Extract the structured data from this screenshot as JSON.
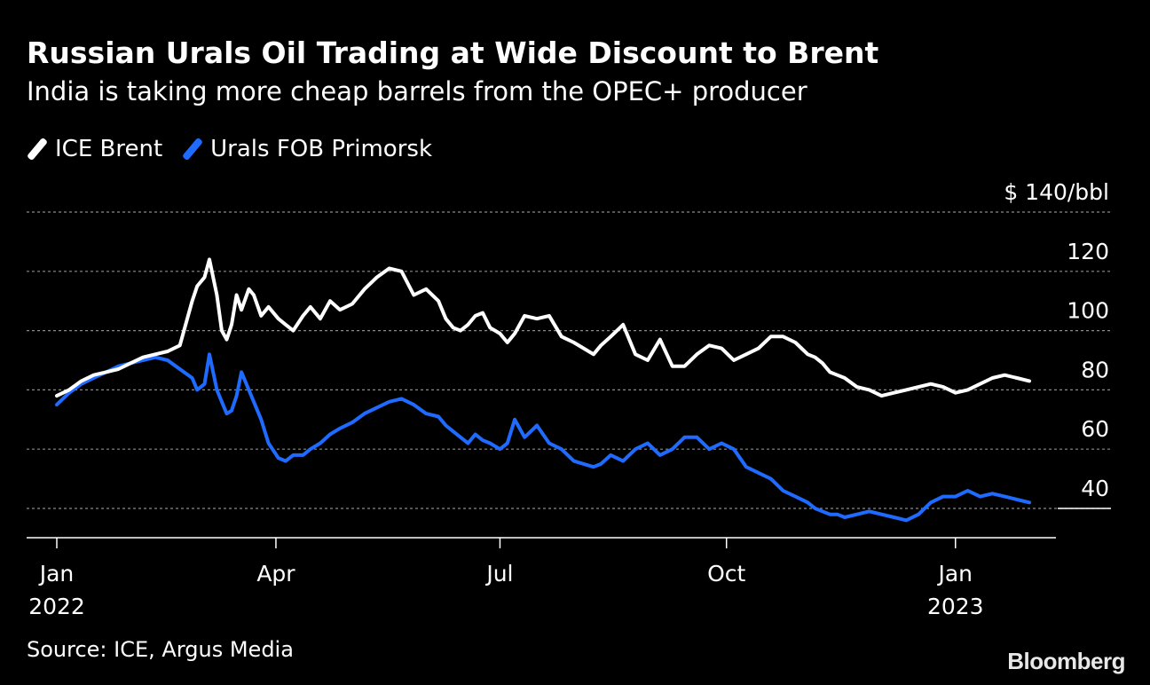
{
  "header": {
    "title": "Russian Urals Oil Trading at Wide Discount to Brent",
    "subtitle": "India is taking more cheap barrels from the OPEC+ producer"
  },
  "colors": {
    "background": "#000000",
    "brent": "#ffffff",
    "urals": "#1f6bff",
    "grid": "#8a8a8a"
  },
  "footer": {
    "source": "Source: ICE, Argus Media",
    "brand": "Bloomberg"
  },
  "chart_data": {
    "type": "line",
    "title": "Russian Urals Oil Trading at Wide Discount to Brent",
    "ylabel": "$ 140/bbl",
    "y_unit_label": "$ 140/bbl",
    "ylim": [
      30,
      140
    ],
    "y_ticks": [
      {
        "value": 140,
        "label": "$ 140/bbl"
      },
      {
        "value": 120,
        "label": "120"
      },
      {
        "value": 100,
        "label": "100"
      },
      {
        "value": 80,
        "label": "80"
      },
      {
        "value": 60,
        "label": "60"
      },
      {
        "value": 40,
        "label": "40"
      }
    ],
    "xlim_days": [
      -2,
      386
    ],
    "x_ticks": [
      {
        "day": 0,
        "line1": "Jan",
        "line2": "2022"
      },
      {
        "day": 89,
        "line1": "Apr",
        "line2": ""
      },
      {
        "day": 180,
        "line1": "Jul",
        "line2": ""
      },
      {
        "day": 272,
        "line1": "Oct",
        "line2": ""
      },
      {
        "day": 365,
        "line1": "Jan",
        "line2": "2023"
      }
    ],
    "x_unit": "days since 2022-01-01",
    "series": [
      {
        "name": "ICE Brent",
        "color": "#ffffff",
        "x": [
          0,
          5,
          10,
          15,
          20,
          25,
          30,
          35,
          40,
          45,
          50,
          55,
          57,
          60,
          62,
          65,
          67,
          69,
          71,
          73,
          75,
          78,
          80,
          83,
          86,
          90,
          93,
          96,
          100,
          103,
          107,
          111,
          115,
          120,
          125,
          130,
          135,
          140,
          145,
          150,
          155,
          158,
          161,
          164,
          167,
          170,
          173,
          176,
          180,
          183,
          186,
          190,
          195,
          200,
          205,
          210,
          214,
          218,
          221,
          225,
          230,
          235,
          240,
          245,
          250,
          255,
          260,
          265,
          270,
          275,
          280,
          285,
          290,
          295,
          300,
          305,
          308,
          311,
          314,
          317,
          320,
          325,
          330,
          335,
          340,
          345,
          350,
          355,
          360,
          365,
          370,
          375,
          380,
          385,
          390,
          395
        ],
        "values": [
          78,
          80,
          83,
          85,
          86,
          87,
          89,
          91,
          92,
          93,
          95,
          110,
          115,
          118,
          124,
          112,
          100,
          97,
          102,
          112,
          107,
          114,
          112,
          105,
          108,
          104,
          102,
          100,
          105,
          108,
          104,
          110,
          107,
          109,
          114,
          118,
          121,
          120,
          112,
          114,
          110,
          104,
          101,
          100,
          102,
          105,
          106,
          101,
          99,
          96,
          99,
          105,
          104,
          105,
          98,
          96,
          94,
          92,
          95,
          98,
          102,
          92,
          90,
          97,
          88,
          88,
          92,
          95,
          94,
          90,
          92,
          94,
          98,
          98,
          96,
          92,
          91,
          89,
          86,
          85,
          84,
          81,
          80,
          78,
          79,
          80,
          81,
          82,
          81,
          79,
          80,
          82,
          84,
          85,
          84,
          83
        ]
      },
      {
        "name": "Urals FOB Primorsk",
        "color": "#1f6bff",
        "x": [
          0,
          5,
          10,
          15,
          20,
          25,
          30,
          35,
          40,
          45,
          50,
          55,
          57,
          60,
          62,
          65,
          67,
          69,
          71,
          73,
          75,
          78,
          80,
          83,
          86,
          90,
          93,
          96,
          100,
          103,
          107,
          111,
          115,
          120,
          125,
          130,
          135,
          140,
          145,
          150,
          155,
          158,
          161,
          164,
          167,
          170,
          173,
          176,
          180,
          183,
          186,
          190,
          195,
          200,
          205,
          210,
          214,
          218,
          221,
          225,
          230,
          235,
          240,
          245,
          250,
          255,
          260,
          265,
          270,
          275,
          280,
          285,
          290,
          295,
          300,
          305,
          308,
          311,
          314,
          317,
          320,
          325,
          330,
          335,
          340,
          345,
          350,
          355,
          360,
          365,
          370,
          375,
          380,
          385,
          390,
          395
        ],
        "values": [
          75,
          79,
          82,
          84,
          86,
          88,
          89,
          90,
          91,
          90,
          87,
          84,
          80,
          82,
          92,
          80,
          76,
          72,
          73,
          78,
          86,
          80,
          76,
          70,
          62,
          57,
          56,
          58,
          58,
          60,
          62,
          65,
          67,
          69,
          72,
          74,
          76,
          77,
          75,
          72,
          71,
          68,
          66,
          64,
          62,
          65,
          63,
          62,
          60,
          62,
          70,
          64,
          68,
          62,
          60,
          56,
          55,
          54,
          55,
          58,
          56,
          60,
          62,
          58,
          60,
          64,
          64,
          60,
          62,
          60,
          54,
          52,
          50,
          46,
          44,
          42,
          40,
          39,
          38,
          38,
          37,
          38,
          39,
          38,
          37,
          36,
          38,
          42,
          44,
          44,
          46,
          44,
          45,
          44,
          43,
          42
        ]
      }
    ]
  }
}
